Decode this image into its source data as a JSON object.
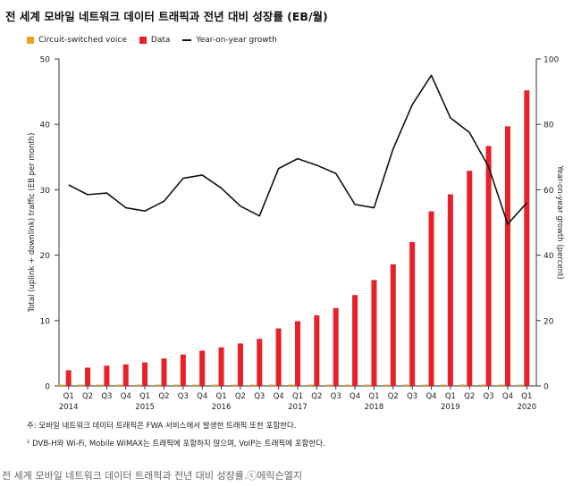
{
  "title": "전 세계 모바일 네트워크 데이터 트래픽과 전년 대비 성장률 (EB/월)",
  "legend": {
    "voice": "Circuit-switched voice",
    "data": "Data",
    "growth": "Year-on-year growth"
  },
  "notes": {
    "note1": "주: 모바일 네트워크 데이터 트래픽은 FWA 서비스에서 발생한 트래픽 또한 포함한다.",
    "note2": "¹ DVB-H와 Wi-Fi, Mobile WiMAX는 트래픽에 포함하지 않으며, VoIP는 트래픽에 포함한다."
  },
  "caption": "전 세계 모바일 네트워크 데이터 트래픽과 전년 대비 성장률.ⓒ에릭슨엘지",
  "colors": {
    "data": "#e8202a",
    "voice": "#f0a020",
    "growth": "#111111",
    "axis": "#333333"
  },
  "chart_data": {
    "type": "bar",
    "title": "전 세계 모바일 네트워크 데이터 트래픽과 전년 대비 성장률 (EB/월)",
    "ylabel": "Total (uplink + downlink) traffic (EB per month)",
    "y2label": "Year-on-year growth (percent)",
    "ylim": [
      0,
      50
    ],
    "y2lim": [
      0,
      100
    ],
    "yticks": [
      0,
      10,
      20,
      30,
      40,
      50
    ],
    "y2ticks": [
      0,
      20,
      40,
      60,
      80,
      100
    ],
    "categories": [
      "Q1",
      "Q2",
      "Q3",
      "Q4",
      "Q1",
      "Q2",
      "Q3",
      "Q4",
      "Q1",
      "Q2",
      "Q3",
      "Q4",
      "Q1",
      "Q2",
      "Q3",
      "Q4",
      "Q1",
      "Q2",
      "Q3",
      "Q4",
      "Q1",
      "Q2",
      "Q3",
      "Q4",
      "Q1"
    ],
    "years": [
      {
        "label": "2014",
        "index": 0
      },
      {
        "label": "2015",
        "index": 4
      },
      {
        "label": "2016",
        "index": 8
      },
      {
        "label": "2017",
        "index": 12
      },
      {
        "label": "2018",
        "index": 16
      },
      {
        "label": "2019",
        "index": 20
      },
      {
        "label": "2020",
        "index": 24
      }
    ],
    "series": [
      {
        "name": "Circuit-switched voice",
        "type": "bar",
        "values": [
          0.2,
          0.2,
          0.2,
          0.2,
          0.2,
          0.2,
          0.2,
          0.2,
          0.2,
          0.2,
          0.2,
          0.2,
          0.2,
          0.2,
          0.2,
          0.2,
          0.2,
          0.2,
          0.2,
          0.2,
          0.2,
          0.2,
          0.2,
          0.2,
          0.2
        ]
      },
      {
        "name": "Data",
        "type": "bar",
        "values": [
          2.4,
          2.8,
          3.1,
          3.3,
          3.6,
          4.2,
          4.8,
          5.4,
          5.9,
          6.5,
          7.2,
          8.8,
          9.9,
          10.8,
          11.9,
          13.9,
          16.2,
          18.6,
          22.0,
          26.7,
          29.3,
          32.9,
          36.7,
          39.7,
          45.2
        ]
      },
      {
        "name": "Year-on-year growth",
        "type": "line",
        "axis": "right",
        "values": [
          61.5,
          58.5,
          59.0,
          54.5,
          53.5,
          56.5,
          63.5,
          64.5,
          60.5,
          55.0,
          52.0,
          66.5,
          69.5,
          67.5,
          65.0,
          55.5,
          54.5,
          72.5,
          86.0,
          95.0,
          82.0,
          77.5,
          67.0,
          49.5,
          56.0
        ]
      }
    ],
    "grid": false,
    "legend_position": "top-left"
  }
}
